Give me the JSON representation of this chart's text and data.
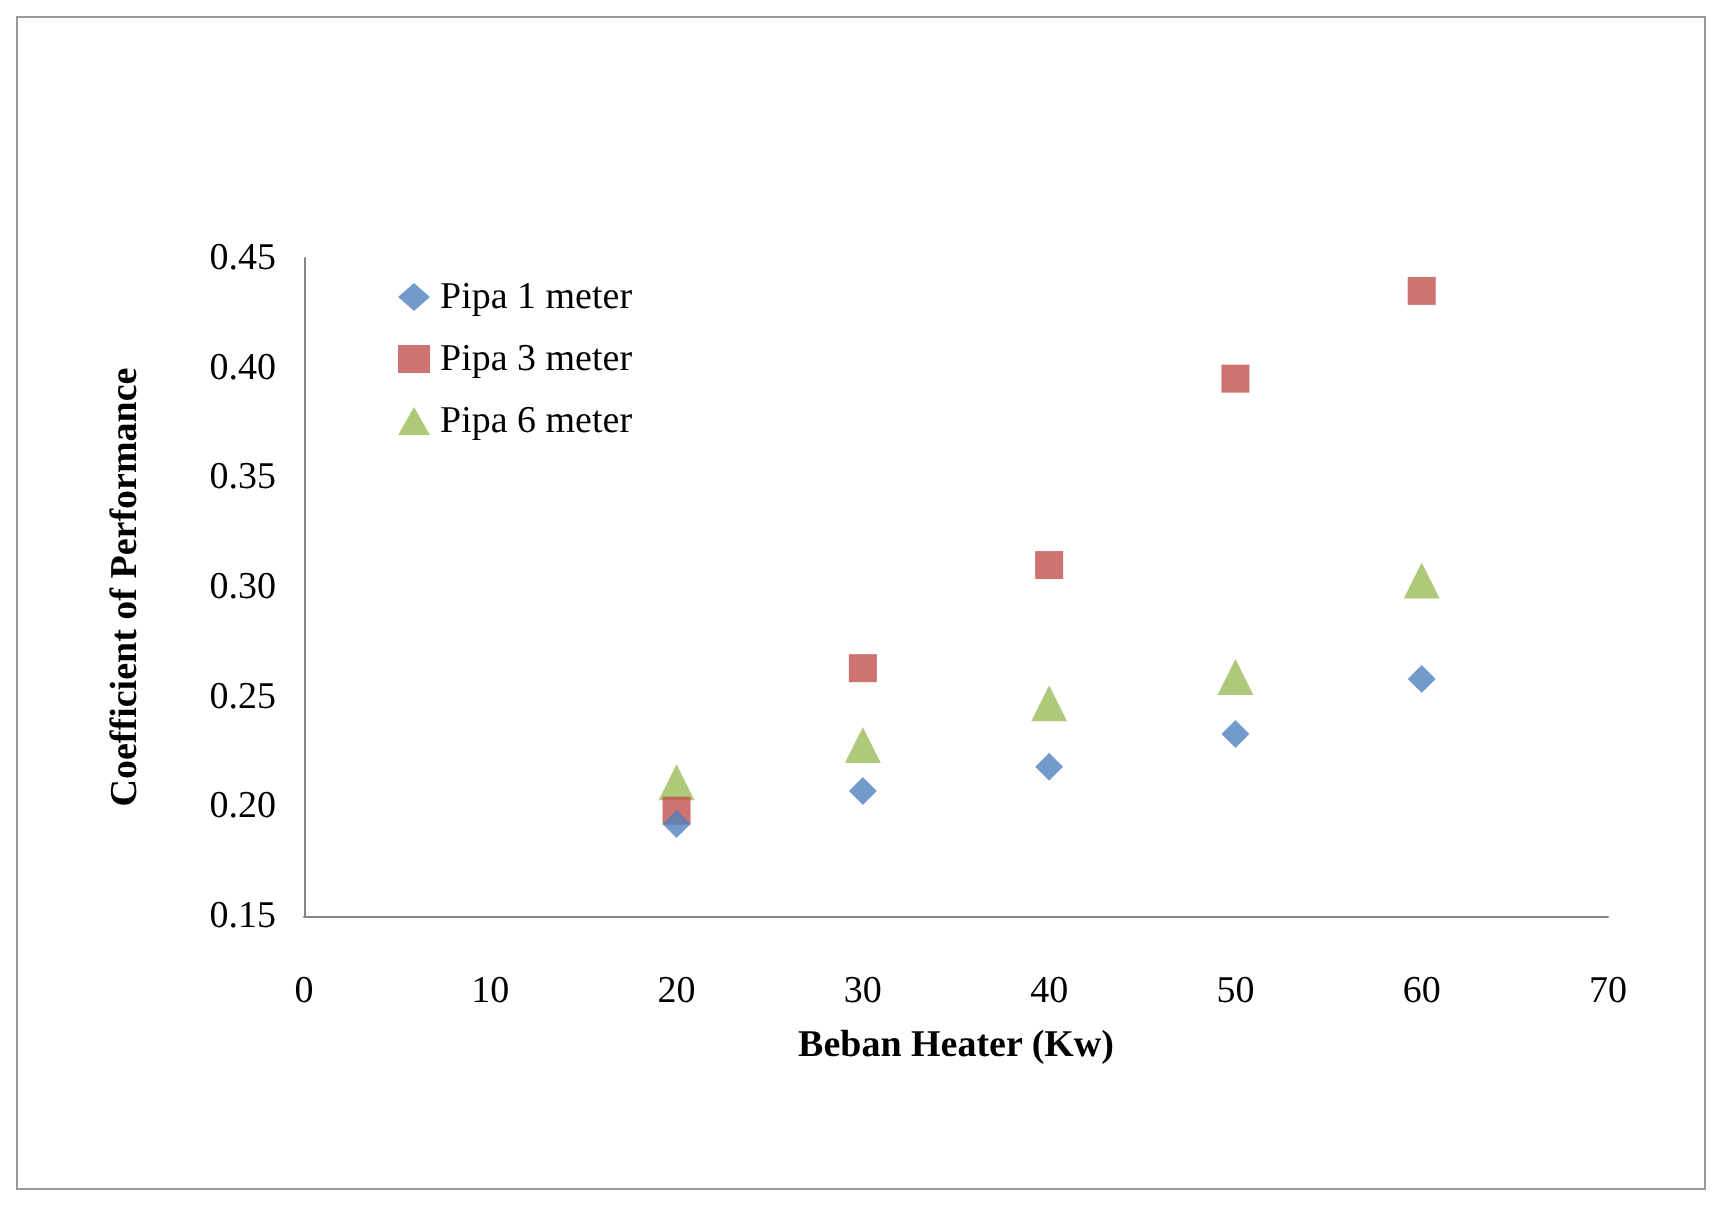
{
  "chart_data": {
    "type": "scatter",
    "xlabel": "Beban Heater (Kw)",
    "ylabel": "Coefficient of Performance",
    "xlim": [
      0,
      70
    ],
    "xticks": [
      0,
      10,
      20,
      30,
      40,
      50,
      60,
      70
    ],
    "ylim": [
      0.15,
      0.45
    ],
    "yticks": [
      {
        "value": 0.15,
        "label": "0.15"
      },
      {
        "value": 0.2,
        "label": "0.20"
      },
      {
        "value": 0.25,
        "label": "0.25"
      },
      {
        "value": 0.3,
        "label": "0.30"
      },
      {
        "value": 0.35,
        "label": "0.35"
      },
      {
        "value": 0.4,
        "label": "0.40"
      },
      {
        "value": 0.45,
        "label": "0.45"
      }
    ],
    "x": [
      20,
      30,
      40,
      50,
      60
    ],
    "series": [
      {
        "name": "Pipa 1 meter",
        "color": "#4f81bd",
        "marker": "diamond",
        "values": [
          0.192,
          0.207,
          0.218,
          0.233,
          0.258
        ]
      },
      {
        "name": "Pipa 3 meter",
        "color": "#c0504d",
        "marker": "square",
        "values": [
          0.198,
          0.263,
          0.31,
          0.395,
          0.435
        ]
      },
      {
        "name": "Pipa 6 meter",
        "color": "#9bbb59",
        "marker": "triangle",
        "values": [
          0.211,
          0.228,
          0.247,
          0.259,
          0.303
        ]
      }
    ],
    "grid": false,
    "legend": "top left"
  }
}
